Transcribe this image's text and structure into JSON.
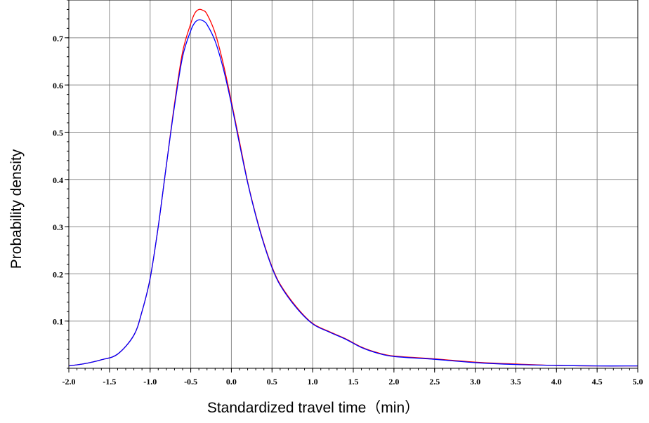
{
  "chart_data": {
    "type": "line",
    "xlabel": "Standardized travel time（min）",
    "ylabel": "Probability density",
    "xlim": [
      -2.0,
      5.0
    ],
    "ylim": [
      0,
      0.78
    ],
    "x_ticks": [
      -2.0,
      -1.5,
      -1.0,
      -0.5,
      0.0,
      0.5,
      1.0,
      1.5,
      2.0,
      2.5,
      3.0,
      3.5,
      4.0,
      4.5,
      5.0
    ],
    "x_tick_labels": [
      "-2.0",
      "-1.5",
      "-1.0",
      "-0.5",
      "0.0",
      "0.5",
      "1.0",
      "1.5",
      "2.0",
      "2.5",
      "3.0",
      "3.5",
      "4.0",
      "4.5",
      "5.0"
    ],
    "y_ticks": [
      0.1,
      0.2,
      0.3,
      0.4,
      0.5,
      0.6,
      0.7
    ],
    "y_tick_labels": [
      "0.1",
      "0.2",
      "0.3",
      "0.4",
      "0.5",
      "0.6",
      "0.7"
    ],
    "grid": true,
    "series": [
      {
        "color": "#ff0000",
        "x": [
          -2.0,
          -1.8,
          -1.6,
          -1.4,
          -1.2,
          -1.1,
          -1.0,
          -0.9,
          -0.8,
          -0.7,
          -0.6,
          -0.5,
          -0.45,
          -0.4,
          -0.35,
          -0.3,
          -0.2,
          -0.1,
          0.0,
          0.1,
          0.2,
          0.3,
          0.4,
          0.5,
          0.6,
          0.8,
          1.0,
          1.2,
          1.4,
          1.6,
          1.8,
          2.0,
          2.5,
          3.0,
          3.5,
          4.0,
          4.5,
          5.0
        ],
        "y": [
          0.005,
          0.01,
          0.018,
          0.03,
          0.07,
          0.12,
          0.19,
          0.3,
          0.43,
          0.56,
          0.67,
          0.73,
          0.752,
          0.76,
          0.758,
          0.75,
          0.71,
          0.645,
          0.565,
          0.48,
          0.395,
          0.325,
          0.265,
          0.215,
          0.178,
          0.13,
          0.095,
          0.078,
          0.063,
          0.045,
          0.033,
          0.026,
          0.02,
          0.013,
          0.009,
          0.006,
          0.005,
          0.005
        ]
      },
      {
        "color": "#0000ff",
        "x": [
          -2.0,
          -1.8,
          -1.6,
          -1.4,
          -1.2,
          -1.1,
          -1.0,
          -0.9,
          -0.8,
          -0.7,
          -0.6,
          -0.5,
          -0.45,
          -0.4,
          -0.35,
          -0.3,
          -0.2,
          -0.1,
          0.0,
          0.1,
          0.2,
          0.3,
          0.4,
          0.5,
          0.6,
          0.8,
          1.0,
          1.2,
          1.4,
          1.6,
          1.8,
          2.0,
          2.5,
          3.0,
          3.5,
          4.0,
          4.5,
          5.0
        ],
        "y": [
          0.005,
          0.01,
          0.018,
          0.03,
          0.07,
          0.12,
          0.19,
          0.3,
          0.43,
          0.555,
          0.66,
          0.715,
          0.732,
          0.738,
          0.736,
          0.728,
          0.693,
          0.635,
          0.56,
          0.475,
          0.393,
          0.323,
          0.263,
          0.213,
          0.176,
          0.128,
          0.094,
          0.077,
          0.062,
          0.044,
          0.032,
          0.025,
          0.019,
          0.012,
          0.008,
          0.006,
          0.005,
          0.005
        ]
      }
    ]
  }
}
